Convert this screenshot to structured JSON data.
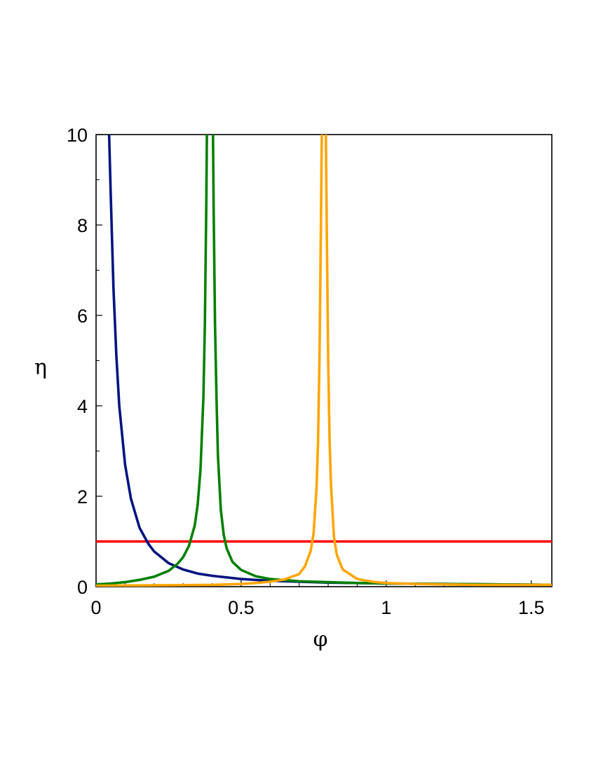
{
  "chart_data": {
    "type": "line",
    "title": "",
    "xlabel": "φ",
    "ylabel": "η",
    "xlim": [
      0,
      1.5708
    ],
    "ylim": [
      0,
      10
    ],
    "x_ticks": [
      {
        "value": 0,
        "label": "0"
      },
      {
        "value": 0.5,
        "label": "0.5"
      },
      {
        "value": 1,
        "label": "1"
      },
      {
        "value": 1.5,
        "label": "1.5"
      }
    ],
    "y_ticks": [
      {
        "value": 0,
        "label": "0"
      },
      {
        "value": 2,
        "label": "2"
      },
      {
        "value": 4,
        "label": "4"
      },
      {
        "value": 6,
        "label": "6"
      },
      {
        "value": 8,
        "label": "8"
      },
      {
        "value": 10,
        "label": "10"
      }
    ],
    "grid": false,
    "legend": "none",
    "series": [
      {
        "color": "#ff0000",
        "x": [
          0,
          1.5708
        ],
        "y": [
          1,
          1
        ]
      },
      {
        "color": "#00137f",
        "x": [
          0.045,
          0.05,
          0.06,
          0.07,
          0.08,
          0.1,
          0.12,
          0.15,
          0.18,
          0.2,
          0.25,
          0.3,
          0.35,
          0.4,
          0.5,
          0.6,
          0.7,
          0.8,
          0.9,
          1.0,
          1.2,
          1.4,
          1.5708
        ],
        "y": [
          10.0,
          8.8,
          6.6,
          5.1,
          4.0,
          2.7,
          1.95,
          1.3,
          0.95,
          0.78,
          0.52,
          0.38,
          0.29,
          0.24,
          0.17,
          0.13,
          0.11,
          0.09,
          0.08,
          0.07,
          0.06,
          0.05,
          0.04
        ]
      },
      {
        "color": "#008000",
        "x": [
          0,
          0.05,
          0.1,
          0.15,
          0.2,
          0.25,
          0.28,
          0.3,
          0.32,
          0.34,
          0.35,
          0.36,
          0.37,
          0.375,
          0.38,
          0.382,
          null,
          0.403,
          0.405,
          0.41,
          0.415,
          0.42,
          0.43,
          0.44,
          0.45,
          0.47,
          0.5,
          0.55,
          0.6,
          0.7,
          0.8,
          0.9,
          1.0,
          1.2,
          1.4,
          1.5708
        ],
        "y": [
          0.05,
          0.07,
          0.1,
          0.15,
          0.22,
          0.35,
          0.5,
          0.65,
          0.9,
          1.35,
          1.8,
          2.6,
          4.2,
          5.8,
          8.5,
          10.0,
          null,
          10.0,
          8.5,
          5.8,
          4.2,
          2.9,
          1.7,
          1.15,
          0.85,
          0.55,
          0.37,
          0.23,
          0.17,
          0.12,
          0.1,
          0.08,
          0.07,
          0.06,
          0.05,
          0.04
        ]
      },
      {
        "color": "#ffa500",
        "x": [
          0,
          0.2,
          0.4,
          0.5,
          0.55,
          0.6,
          0.65,
          0.7,
          0.72,
          0.74,
          0.75,
          0.76,
          0.765,
          0.77,
          0.775,
          0.778,
          null,
          0.792,
          0.795,
          0.8,
          0.805,
          0.81,
          0.82,
          0.83,
          0.85,
          0.9,
          0.95,
          1.0,
          1.1,
          1.2,
          1.3,
          1.5708
        ],
        "y": [
          0.02,
          0.03,
          0.04,
          0.06,
          0.08,
          0.11,
          0.16,
          0.28,
          0.45,
          0.8,
          1.2,
          2.2,
          3.2,
          5.0,
          8.0,
          10.0,
          null,
          10.0,
          8.0,
          5.0,
          3.2,
          2.2,
          1.1,
          0.7,
          0.38,
          0.17,
          0.11,
          0.08,
          0.06,
          0.05,
          0.04,
          0.04
        ]
      }
    ]
  }
}
